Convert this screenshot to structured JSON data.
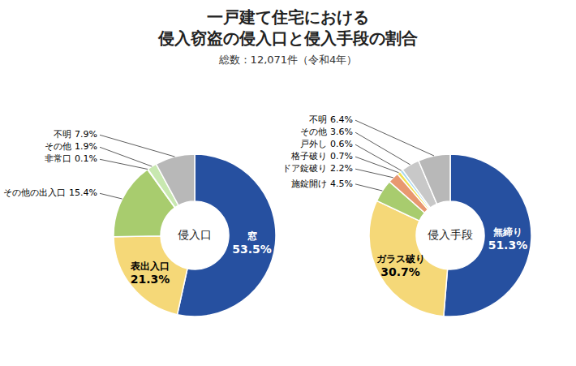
{
  "title": [
    "一戸建て住宅における",
    "侵入窃盗の侵入口と侵入手段の割合"
  ],
  "subtitle": "総数：12,071件（令和4年）",
  "chart_data": [
    {
      "type": "pie",
      "title": "侵入口",
      "categories": [
        "窓",
        "表出入口",
        "その他の出入口",
        "非常口",
        "その他",
        "不明"
      ],
      "values": [
        53.5,
        21.3,
        15.4,
        0.1,
        1.9,
        7.9
      ],
      "value_labels": [
        "53.5%",
        "21.3%",
        "15.4%",
        "0.1%",
        "1.9%",
        "7.9%"
      ],
      "colors": [
        "#2650a0",
        "#f5d878",
        "#a8cc6e",
        "#aed4e0",
        "#c8e8b0",
        "#b8b8b8"
      ],
      "data_labels": true
    },
    {
      "type": "pie",
      "title": "侵入手段",
      "categories": [
        "無締り",
        "ガラス破り",
        "施錠開け",
        "ドア錠破り",
        "格子破り",
        "戸外し",
        "その他",
        "不明"
      ],
      "values": [
        51.3,
        30.7,
        4.5,
        2.2,
        0.7,
        0.6,
        3.6,
        6.4
      ],
      "value_labels": [
        "51.3%",
        "30.7%",
        "4.5%",
        "2.2%",
        "0.7%",
        "0.6%",
        "3.6%",
        "6.4%"
      ],
      "colors": [
        "#2650a0",
        "#f5d878",
        "#a8cc6e",
        "#e89870",
        "#f0e050",
        "#a8d8f0",
        "#c8c8c8",
        "#b8b8b8"
      ],
      "data_labels": true
    }
  ]
}
